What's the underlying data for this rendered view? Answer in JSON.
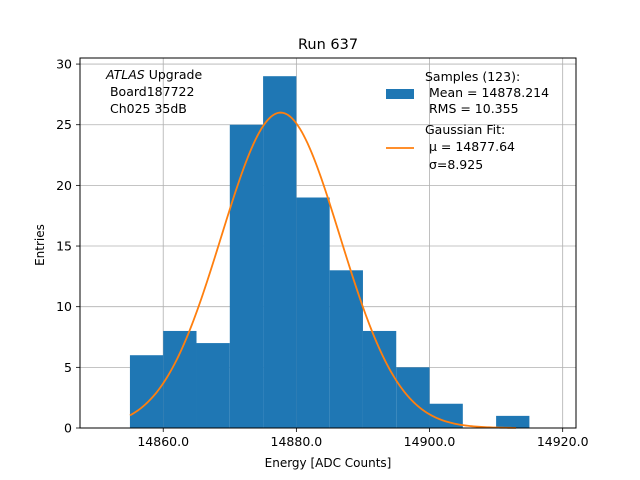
{
  "chart_data": {
    "type": "bar",
    "title": "Run 637",
    "xlabel": "Energy [ADC Counts]",
    "ylabel": "Entries",
    "xlim": [
      14847.5,
      14922.0
    ],
    "ylim": [
      0,
      30.5
    ],
    "grid": true,
    "xticks": [
      14860.0,
      14880.0,
      14900.0,
      14920.0
    ],
    "xtick_labels": [
      "14860.0",
      "14880.0",
      "14900.0",
      "14920.0"
    ],
    "yticks": [
      0,
      5,
      10,
      15,
      20,
      25,
      30
    ],
    "ytick_labels": [
      "0",
      "5",
      "10",
      "15",
      "20",
      "25",
      "30"
    ],
    "histogram": {
      "name": "Samples (123):",
      "color": "#1f77b4",
      "bin_edges": [
        14855.0,
        14860.0,
        14865.0,
        14870.0,
        14875.0,
        14880.0,
        14885.0,
        14890.0,
        14895.0,
        14900.0,
        14905.0,
        14910.0,
        14915.0
      ],
      "counts": [
        6,
        8,
        7,
        25,
        29,
        19,
        13,
        8,
        5,
        2,
        0,
        1
      ]
    },
    "fit": {
      "name": "Gaussian Fit:",
      "color": "#ff7f0e",
      "amplitude": 26.0,
      "mu": 14877.64,
      "sigma": 8.925,
      "x_range": [
        14855.0,
        14913.0
      ]
    },
    "annotation": {
      "italic": "ATLAS",
      "rest": " Upgrade",
      "line2": " Board187722",
      "line3": " Ch025 35dB"
    },
    "legend": {
      "placement": "top-right",
      "samples_label": "Samples (123):",
      "mean_label": " Mean = 14878.214",
      "rms_label": " RMS = 10.355",
      "fit_label": "Gaussian Fit:",
      "mu_label": " μ = 14877.64",
      "sigma_label": " σ=8.925"
    }
  }
}
